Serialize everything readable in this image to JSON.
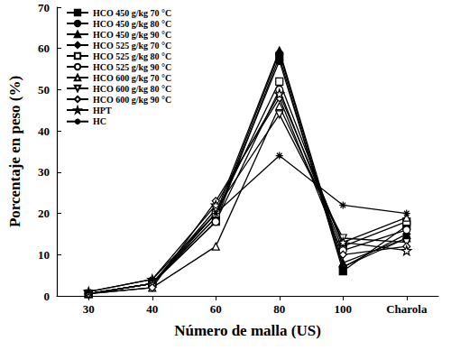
{
  "chart_data": {
    "type": "line",
    "x_label": "Número de malla (US)",
    "y_label": "Porcentaje en peso (%)",
    "categories": [
      "30",
      "40",
      "60",
      "80",
      "100",
      "Charola"
    ],
    "ylim": [
      0,
      70
    ],
    "yticks": [
      0,
      10,
      20,
      30,
      40,
      50,
      60,
      70
    ],
    "grid": false,
    "legend": "upper-left",
    "series": [
      {
        "name": "HCO 450 g/kg 70 °C",
        "color": "#000000",
        "marker": "filled-square",
        "values": [
          0.5,
          3,
          18,
          58,
          6,
          17
        ]
      },
      {
        "name": "HCO 450 g/kg 80 °C",
        "color": "#000000",
        "marker": "filled-circle",
        "values": [
          0.5,
          3,
          19,
          57,
          7,
          14
        ]
      },
      {
        "name": "HCO 450 g/kg 90 °C",
        "color": "#000000",
        "marker": "filled-triangle",
        "values": [
          0.5,
          3,
          20,
          59.5,
          8,
          14
        ]
      },
      {
        "name": "HCO 525 g/kg 70 °C",
        "color": "#000000",
        "marker": "filled-diamond",
        "values": [
          0.5,
          3,
          19,
          59,
          7,
          15
        ]
      },
      {
        "name": "HCO 525 g/kg 80 °C",
        "color": "#000000",
        "marker": "open-square",
        "values": [
          0.5,
          3,
          20,
          52,
          12,
          18
        ]
      },
      {
        "name": "HCO 525 g/kg 90 °C",
        "color": "#000000",
        "marker": "open-circle",
        "values": [
          0.5,
          3,
          18,
          50,
          11,
          16
        ]
      },
      {
        "name": "HCO 600 g/kg 70 °C",
        "color": "#000000",
        "marker": "open-triangle",
        "values": [
          0.5,
          2,
          12,
          46,
          13,
          19
        ]
      },
      {
        "name": "HCO 600 g/kg 80 °C",
        "color": "#000000",
        "marker": "open-triangle-down",
        "values": [
          0.5,
          3,
          21,
          44,
          14,
          13
        ]
      },
      {
        "name": "HCO 600 g/kg 90 °C",
        "color": "#000000",
        "marker": "open-diamond",
        "values": [
          0.5,
          2,
          23,
          48,
          10,
          12
        ]
      },
      {
        "name": "HPT",
        "color": "#000000",
        "marker": "open-star",
        "values": [
          1,
          4,
          22,
          49,
          13,
          11
        ]
      },
      {
        "name": "HC",
        "color": "#000000",
        "marker": "asterisk",
        "values": [
          1,
          4,
          20,
          34,
          22,
          20
        ]
      }
    ]
  }
}
